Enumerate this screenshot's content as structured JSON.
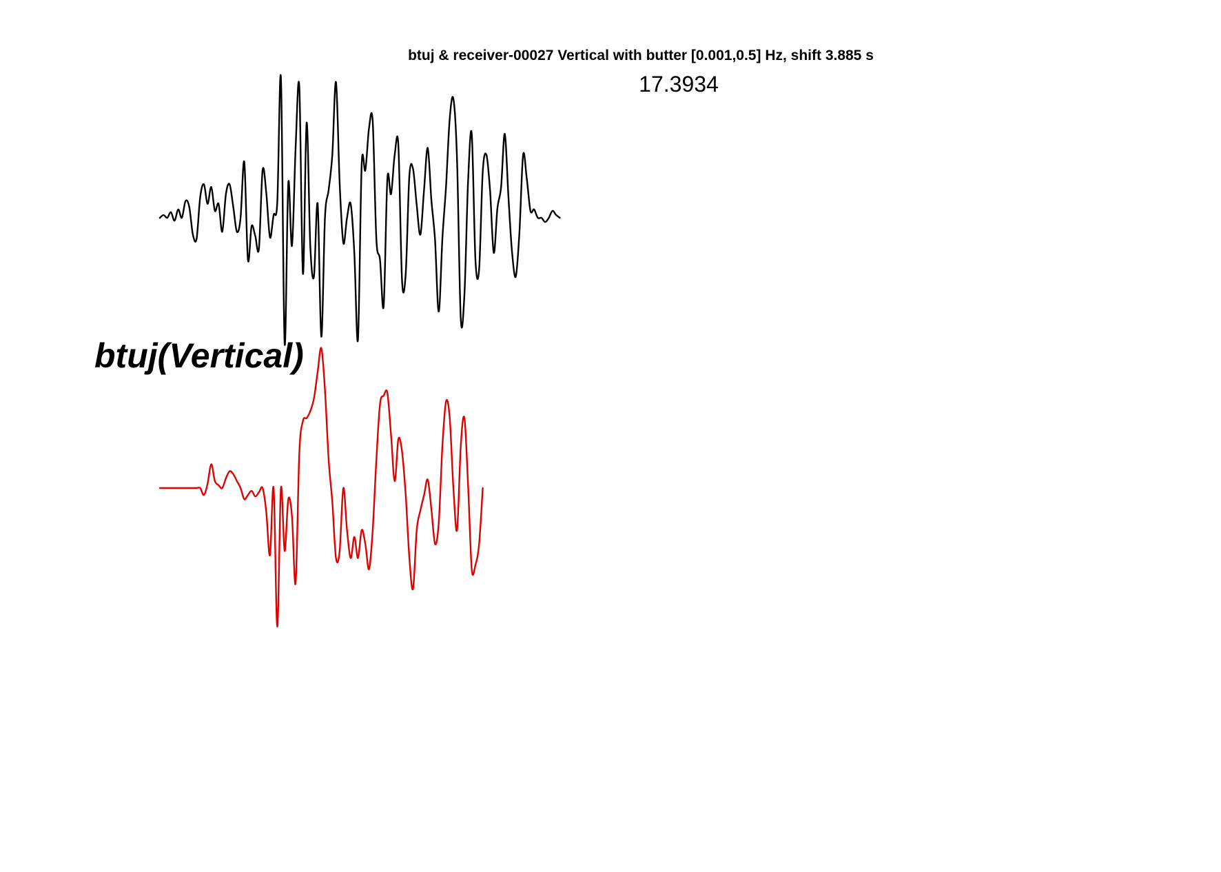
{
  "chart_data": {
    "type": "line",
    "title": "btuj & receiver-00027 Vertical with butter [0.001,0.5] Hz, shift 3.885 s",
    "annotation_value": "17.3934",
    "station_label": "btuj(Vertical)",
    "xlabel": "",
    "ylabel": "",
    "axes_visible": false,
    "grid": false,
    "series": [
      {
        "color": "#000000",
        "x": [
          0,
          1,
          2,
          3,
          4,
          5,
          6,
          7,
          8,
          9,
          10,
          11,
          12,
          13,
          14,
          15,
          16,
          17,
          18,
          19,
          20,
          21,
          22,
          23,
          24,
          25,
          26,
          27,
          28,
          29,
          30,
          31,
          32,
          33,
          34,
          35,
          36,
          37,
          38,
          39,
          40,
          41,
          42,
          43,
          44,
          45,
          46,
          47,
          48,
          49,
          50,
          51,
          52,
          53,
          54,
          55,
          56,
          57,
          58,
          59,
          60,
          61,
          62,
          63,
          64,
          65,
          66,
          67,
          68,
          69,
          70,
          71,
          72,
          73,
          74,
          75,
          76,
          77,
          78,
          79,
          80,
          81,
          82,
          83,
          84,
          85,
          86,
          87,
          88,
          89,
          90,
          91,
          92,
          93,
          94,
          95,
          96,
          97,
          98,
          99,
          100,
          101,
          102,
          103,
          104,
          105,
          106,
          107,
          108,
          109,
          110,
          111,
          112,
          113,
          114,
          115,
          116,
          117,
          118,
          119,
          120,
          121,
          122,
          123,
          124,
          125,
          126,
          127,
          128,
          129,
          130
        ],
        "y": [
          0.0,
          0.02,
          0.0,
          0.04,
          -0.02,
          0.06,
          0.0,
          0.12,
          0.08,
          -0.12,
          -0.15,
          0.15,
          0.24,
          0.1,
          0.22,
          0.05,
          0.1,
          -0.1,
          0.17,
          0.24,
          0.08,
          -0.1,
          0.0,
          0.4,
          -0.3,
          -0.06,
          -0.13,
          -0.22,
          0.34,
          0.18,
          -0.14,
          0.02,
          0.11,
          1.0,
          -0.9,
          0.25,
          -0.2,
          0.5,
          0.94,
          -0.4,
          0.68,
          -0.2,
          -0.42,
          0.1,
          -0.85,
          0.0,
          0.2,
          0.45,
          0.97,
          0.25,
          -0.18,
          0.0,
          0.1,
          -0.25,
          -0.87,
          0.38,
          0.34,
          0.64,
          0.69,
          -0.15,
          -0.3,
          -0.63,
          0.28,
          0.17,
          0.45,
          0.52,
          -0.45,
          -0.4,
          0.3,
          0.35,
          0.09,
          -0.12,
          0.2,
          0.5,
          0.13,
          -0.16,
          -0.67,
          -0.15,
          0.23,
          0.71,
          0.85,
          0.41,
          -0.72,
          -0.55,
          0.26,
          0.6,
          -0.3,
          -0.37,
          0.33,
          0.45,
          0.19,
          -0.25,
          0.07,
          0.22,
          0.6,
          0.15,
          -0.25,
          -0.42,
          -0.1,
          0.45,
          0.28,
          0.05,
          0.06,
          0.0,
          0.0,
          -0.03,
          0.0,
          0.05,
          0.02,
          0.0,
          0.0,
          0.0,
          0.0,
          0.0,
          0.0,
          0.0,
          0.0,
          0.0,
          0.0,
          0.0,
          0.0,
          0.0,
          0.0,
          0.0,
          0.0,
          0.0,
          0.0,
          0.0,
          0.0,
          0.0,
          0.0
        ]
      },
      {
        "color": "#e00000",
        "x": [
          0,
          1,
          2,
          3,
          4,
          5,
          6,
          7,
          8,
          9,
          10,
          11,
          12,
          13,
          14,
          15,
          16,
          17,
          18,
          19,
          20,
          21,
          22,
          23,
          24,
          25,
          26,
          27,
          28,
          29,
          30,
          31,
          32,
          33,
          34,
          35,
          36,
          37,
          38,
          39,
          40,
          41,
          42,
          43,
          44,
          45,
          46,
          47,
          48,
          49,
          50,
          51,
          52,
          53,
          54,
          55,
          56,
          57,
          58,
          59,
          60,
          61,
          62,
          63,
          64,
          65,
          66,
          67,
          68,
          69,
          70,
          71,
          72,
          73,
          74,
          75,
          76,
          77,
          78,
          79,
          80,
          81,
          82,
          83,
          84,
          85,
          86,
          87,
          88,
          89,
          90,
          91,
          92,
          93,
          94,
          95,
          96,
          97,
          98,
          99,
          100,
          101,
          102,
          103,
          104,
          105,
          106,
          107,
          108,
          109,
          110,
          111,
          112,
          113,
          114
        ],
        "y": [
          0.0,
          0.0,
          0.0,
          0.0,
          0.0,
          0.0,
          0.0,
          0.0,
          0.0,
          0.0,
          0.0,
          0.0,
          -0.05,
          0.03,
          0.17,
          0.05,
          0.02,
          0.0,
          0.07,
          0.12,
          0.1,
          0.05,
          0.0,
          -0.08,
          -0.05,
          -0.02,
          -0.06,
          -0.03,
          0.0,
          -0.17,
          -0.48,
          0.0,
          -0.99,
          0.0,
          -0.45,
          -0.08,
          -0.2,
          -0.68,
          0.25,
          0.48,
          0.5,
          0.55,
          0.64,
          0.83,
          1.0,
          0.7,
          0.2,
          -0.1,
          -0.5,
          -0.45,
          0.0,
          -0.3,
          -0.5,
          -0.35,
          -0.5,
          -0.3,
          -0.4,
          -0.58,
          -0.3,
          0.2,
          0.6,
          0.66,
          0.68,
          0.38,
          0.05,
          0.35,
          0.26,
          -0.05,
          -0.5,
          -0.72,
          -0.3,
          -0.16,
          -0.05,
          0.06,
          -0.15,
          -0.4,
          -0.25,
          0.3,
          0.62,
          0.5,
          0.0,
          -0.3,
          0.3,
          0.5,
          0.02,
          -0.58,
          -0.55,
          -0.4,
          0.0,
          0.0,
          0.0,
          0.0,
          0.0,
          0.0,
          0.0,
          0.0,
          0.0,
          0.0,
          0.0,
          0.0,
          0.0,
          0.0,
          0.0,
          0.0,
          0.0,
          0.0,
          0.0,
          0.0,
          0.0,
          0.0,
          0.0,
          0.0,
          0.0,
          0.0,
          0.0
        ]
      }
    ]
  }
}
